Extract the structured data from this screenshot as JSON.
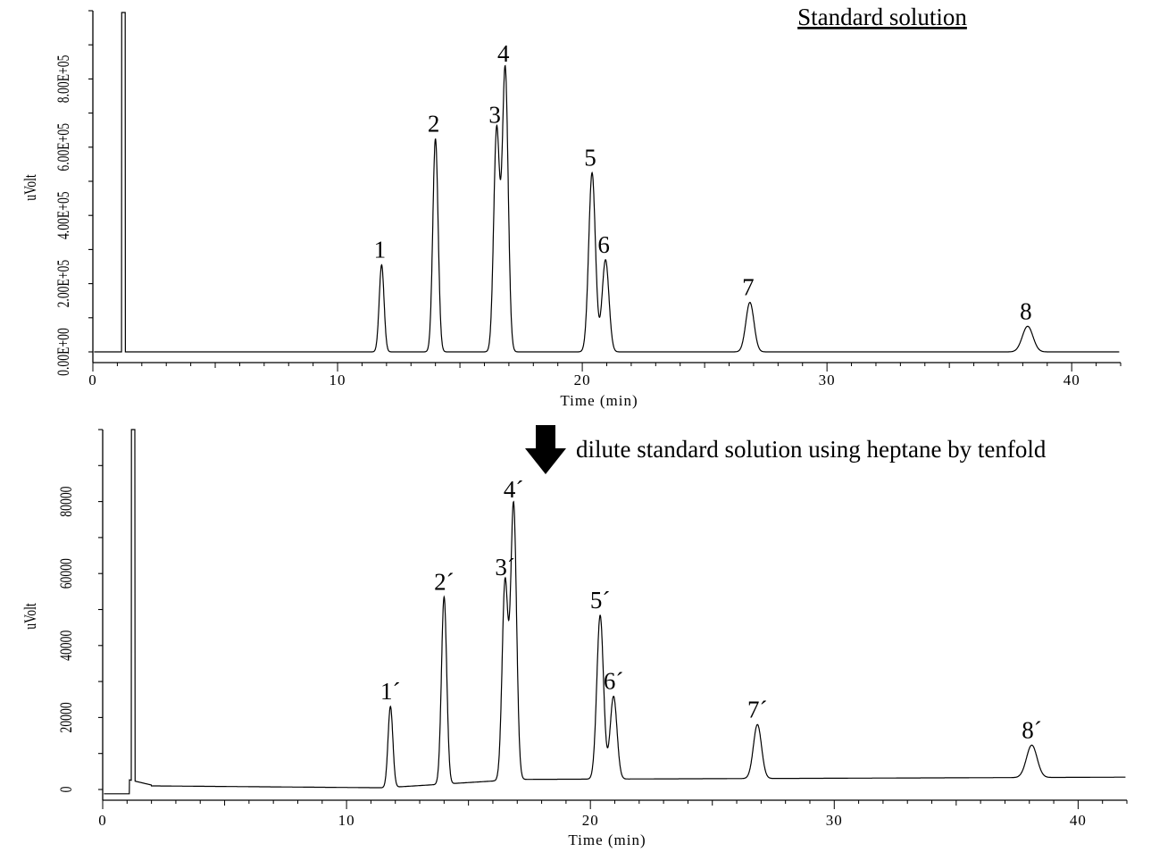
{
  "chart_data": [
    {
      "type": "line",
      "title": "Standard solution",
      "xlabel": "Time (min)",
      "ylabel": "uVolt",
      "xlim": [
        0,
        42
      ],
      "ylim": [
        0,
        1000000
      ],
      "x_ticks": [
        "0",
        "10",
        "20",
        "30",
        "40"
      ],
      "y_ticks": [
        "0.00E+00",
        "2.00E+05",
        "4.00E+05",
        "6.00E+05",
        "8.00E+05"
      ],
      "grid": false,
      "baseline": 0,
      "series": [
        {
          "peaks": [
            {
              "label": "1",
              "time": 11.8,
              "height": 255000
            },
            {
              "label": "2",
              "time": 14.0,
              "height": 625000
            },
            {
              "label": "3",
              "time": 16.5,
              "height": 650000
            },
            {
              "label": "4",
              "time": 16.85,
              "height": 830000
            },
            {
              "label": "5",
              "time": 20.4,
              "height": 525000
            },
            {
              "label": "6",
              "time": 20.95,
              "height": 270000
            },
            {
              "label": "7",
              "time": 26.85,
              "height": 145000
            },
            {
              "label": "8",
              "time": 38.2,
              "height": 75000
            }
          ]
        }
      ]
    },
    {
      "type": "line",
      "xlabel": "Time (min)",
      "ylabel": "uVolt",
      "xlim": [
        0,
        42
      ],
      "ylim": [
        0,
        100000
      ],
      "x_ticks": [
        "0",
        "10",
        "20",
        "30",
        "40"
      ],
      "y_ticks": [
        "0",
        "20000",
        "40000",
        "60000",
        "80000"
      ],
      "grid": false,
      "series": [
        {
          "peaks": [
            {
              "label": "1´",
              "time": 11.8,
              "height": 22500
            },
            {
              "label": "2´",
              "time": 14.0,
              "height": 52000
            },
            {
              "label": "3´",
              "time": 16.5,
              "height": 55000
            },
            {
              "label": "4´",
              "time": 16.85,
              "height": 76500
            },
            {
              "label": "5´",
              "time": 20.4,
              "height": 45500
            },
            {
              "label": "6´",
              "time": 20.95,
              "height": 23000
            },
            {
              "label": "7´",
              "time": 26.85,
              "height": 15000
            },
            {
              "label": "8´",
              "time": 38.1,
              "height": 9000
            }
          ]
        }
      ]
    }
  ],
  "annotation": {
    "text": "dilute standard solution using heptane by tenfold",
    "icon": "down-arrow-icon"
  }
}
